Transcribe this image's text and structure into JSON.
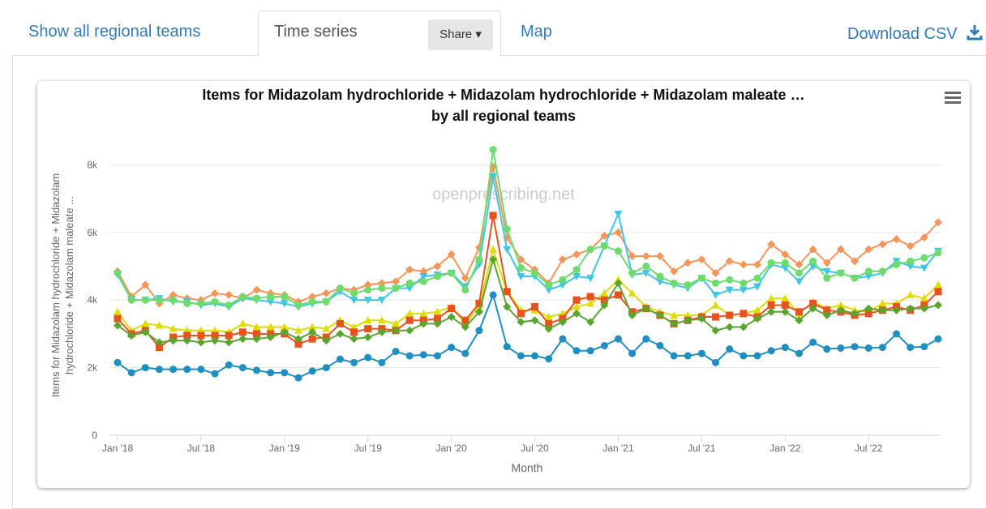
{
  "tabs": [
    "Show all regional teams",
    "Time series",
    "Map"
  ],
  "share": "Share",
  "download": "Download CSV",
  "chart_data": {
    "type": "line",
    "title": [
      "Items for Midazolam hydrochloride + Midazolam hydrochloride + Midazolam maleate …",
      "by all regional teams"
    ],
    "ylabel": [
      "Items for Midazolam hydrochloride + Midazolam",
      "hydrochloride + Midazolam maleate ..."
    ],
    "xlabel": "Month",
    "watermark": "openprescribing.net",
    "categories": [
      "Jan '18",
      null,
      null,
      null,
      null,
      null,
      "Jul '18",
      null,
      null,
      null,
      null,
      null,
      "Jan '19",
      null,
      null,
      null,
      null,
      null,
      "Jul '19",
      null,
      null,
      null,
      null,
      null,
      "Jan '20",
      null,
      null,
      null,
      null,
      null,
      "Jul '20",
      null,
      null,
      null,
      null,
      null,
      "Jan '21",
      null,
      null,
      null,
      null,
      null,
      "Jul '21",
      null,
      null,
      null,
      null,
      null,
      "Jan '22",
      null,
      null,
      null,
      null,
      null,
      "Jul '22",
      null,
      null,
      null,
      null,
      null
    ],
    "ylim": [
      0,
      8800
    ],
    "yticks": [
      0,
      {
        "value": 2000,
        "label": "2k"
      },
      {
        "value": 4000,
        "label": "4k"
      },
      {
        "value": 6000,
        "label": "6k"
      },
      {
        "value": 8000,
        "label": "8k"
      }
    ],
    "grid": true,
    "series": [
      {
        "color": "#f7945a",
        "marker": "diamond",
        "values": [
          4850,
          4100,
          4450,
          3900,
          4150,
          4050,
          4000,
          4200,
          4150,
          4050,
          4300,
          4200,
          4150,
          3950,
          4100,
          4200,
          4350,
          4300,
          4450,
          4500,
          4550,
          4900,
          4850,
          5000,
          5350,
          4650,
          5550,
          7950,
          5850,
          5200,
          4900,
          4500,
          5200,
          5350,
          5500,
          5900,
          6000,
          5300,
          5300,
          5300,
          4850,
          5100,
          5200,
          4800,
          5150,
          5050,
          5050,
          5650,
          5350,
          5050,
          5500,
          5100,
          5500,
          5150,
          5500,
          5650,
          5800,
          5600,
          5850,
          6300
        ]
      },
      {
        "color": "#3fc6e6",
        "marker": "triangle-down",
        "values": [
          4750,
          4000,
          4000,
          4050,
          3950,
          3950,
          3850,
          3900,
          3800,
          4050,
          4000,
          3950,
          3900,
          3800,
          3900,
          3950,
          4250,
          4000,
          4000,
          4000,
          4350,
          4350,
          4700,
          4750,
          4800,
          4400,
          5050,
          7650,
          5500,
          4700,
          4700,
          4300,
          4450,
          4700,
          4650,
          5600,
          6550,
          4750,
          4800,
          4550,
          4450,
          4350,
          4650,
          4150,
          4300,
          4300,
          4400,
          5050,
          4950,
          4550,
          5000,
          4850,
          4800,
          4650,
          4700,
          4800,
          5150,
          5000,
          4950,
          5450
        ]
      },
      {
        "color": "#6ddc6d",
        "marker": "circle",
        "values": [
          4800,
          4000,
          4000,
          4000,
          4000,
          3900,
          3900,
          3950,
          3850,
          4100,
          4050,
          4100,
          4100,
          3850,
          3950,
          3950,
          4350,
          4200,
          4300,
          4350,
          4350,
          4500,
          4550,
          4700,
          4800,
          4300,
          5200,
          8450,
          6100,
          4950,
          4800,
          4450,
          4600,
          4900,
          5500,
          5600,
          5450,
          4800,
          5000,
          4700,
          4500,
          4450,
          4650,
          4500,
          4600,
          4500,
          4650,
          5100,
          5100,
          4800,
          5150,
          4650,
          4800,
          4650,
          4850,
          4850,
          5050,
          5150,
          5250,
          5400
        ]
      },
      {
        "color": "#dedc00",
        "marker": "triangle",
        "values": [
          3650,
          3100,
          3300,
          3250,
          3150,
          3100,
          3100,
          3100,
          3050,
          3300,
          3200,
          3200,
          3200,
          3100,
          3200,
          3150,
          3400,
          3200,
          3400,
          3400,
          3300,
          3600,
          3600,
          3650,
          3800,
          3300,
          3800,
          5500,
          4250,
          3700,
          3700,
          3500,
          3600,
          3800,
          3900,
          4200,
          4600,
          4200,
          3800,
          3650,
          3550,
          3550,
          3550,
          3850,
          3550,
          3600,
          3700,
          4050,
          4050,
          3600,
          3950,
          3750,
          3850,
          3700,
          3650,
          3900,
          3900,
          4150,
          4050,
          4450
        ]
      },
      {
        "color": "#e8521f",
        "marker": "square",
        "values": [
          3450,
          3000,
          3100,
          2600,
          2900,
          2950,
          2950,
          2950,
          2950,
          3050,
          3000,
          3000,
          3000,
          2700,
          2850,
          2900,
          3300,
          3050,
          3150,
          3150,
          3100,
          3400,
          3400,
          3450,
          3750,
          3400,
          3900,
          6500,
          4250,
          3600,
          3800,
          3300,
          3450,
          4000,
          4100,
          4000,
          4150,
          3650,
          3750,
          3550,
          3300,
          3400,
          3500,
          3500,
          3550,
          3600,
          3500,
          3850,
          3850,
          3650,
          3900,
          3700,
          3650,
          3550,
          3600,
          3700,
          3800,
          3700,
          3850,
          4250
        ]
      },
      {
        "color": "#5aa530",
        "marker": "diamond",
        "values": [
          3250,
          2950,
          3050,
          2750,
          2800,
          2800,
          2750,
          2800,
          2750,
          2850,
          2850,
          2900,
          3050,
          2850,
          3050,
          2800,
          3000,
          2850,
          2900,
          3050,
          3100,
          3100,
          3300,
          3300,
          3500,
          3200,
          3650,
          5200,
          3800,
          3350,
          3400,
          3150,
          3350,
          3600,
          3350,
          3850,
          4500,
          3550,
          3750,
          3550,
          3300,
          3400,
          3450,
          3100,
          3200,
          3200,
          3450,
          3650,
          3650,
          3400,
          3750,
          3550,
          3700,
          3600,
          3750,
          3700,
          3700,
          3750,
          3750,
          3850
        ]
      },
      {
        "color": "#1f8fc1",
        "marker": "circle",
        "values": [
          2150,
          1850,
          2000,
          1950,
          1950,
          1950,
          1950,
          1820,
          2080,
          2000,
          1920,
          1850,
          1850,
          1700,
          1900,
          2000,
          2250,
          2150,
          2300,
          2150,
          2480,
          2350,
          2380,
          2350,
          2600,
          2420,
          3100,
          4150,
          2620,
          2350,
          2350,
          2260,
          2850,
          2500,
          2500,
          2650,
          2850,
          2420,
          2850,
          2650,
          2350,
          2350,
          2420,
          2150,
          2550,
          2350,
          2350,
          2500,
          2600,
          2420,
          2750,
          2550,
          2580,
          2620,
          2580,
          2600,
          3000,
          2600,
          2620,
          2850
        ]
      }
    ]
  }
}
